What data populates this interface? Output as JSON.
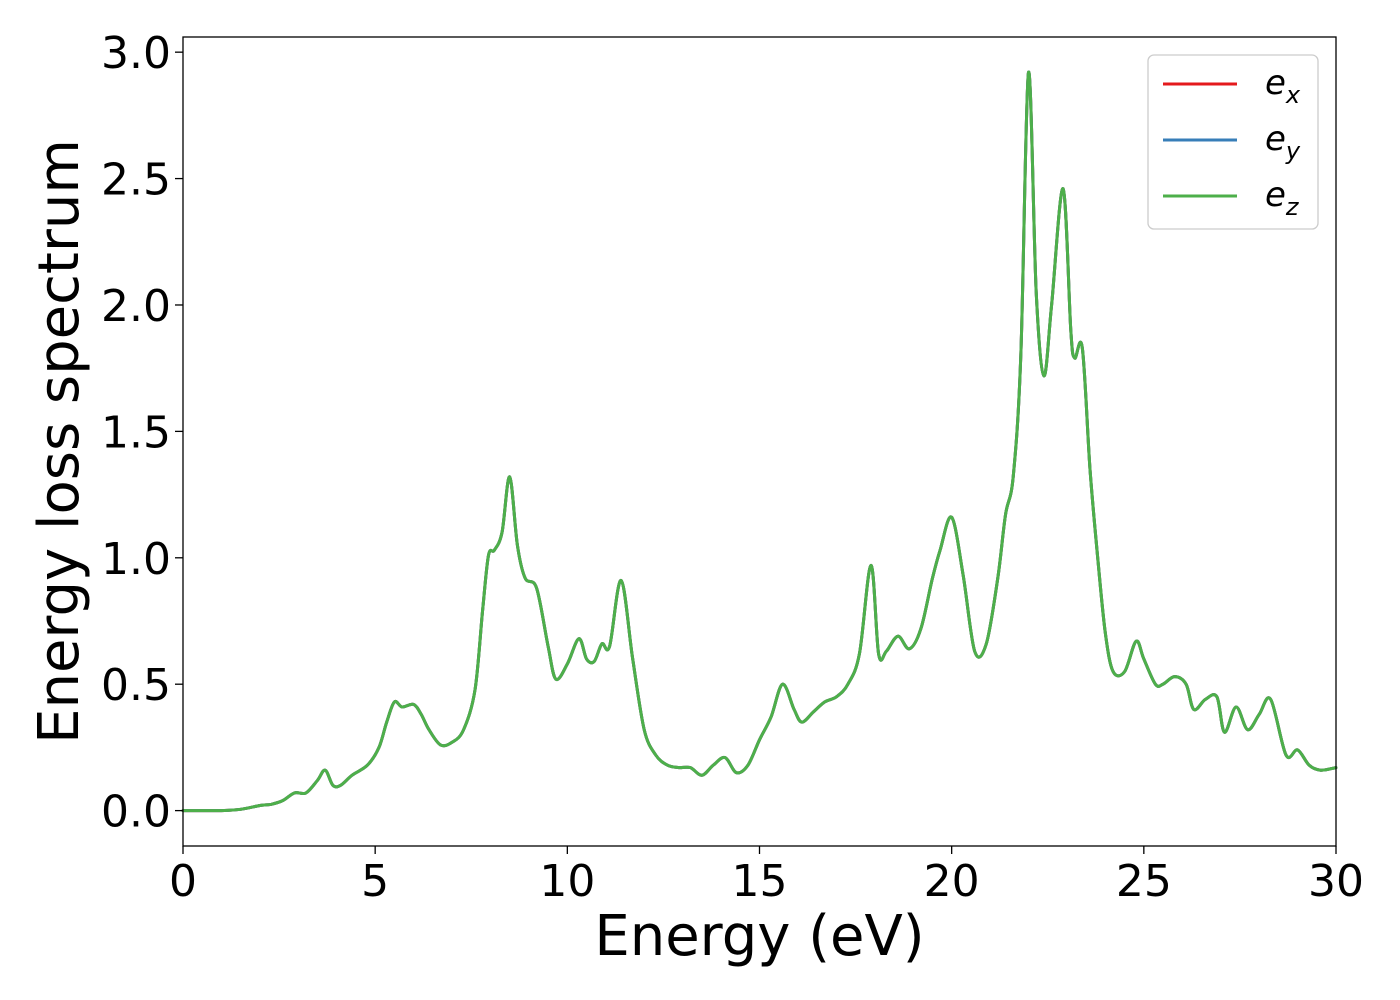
{
  "chart_data": {
    "type": "line",
    "title": "",
    "xlabel": "Energy (eV)",
    "ylabel": "Energy loss spectrum",
    "xlim": [
      0,
      30
    ],
    "ylim": [
      -0.14,
      3.06
    ],
    "xticks": [
      0,
      5,
      10,
      15,
      20,
      25,
      30
    ],
    "xtick_labels": [
      "0",
      "5",
      "10",
      "15",
      "20",
      "25",
      "30"
    ],
    "yticks": [
      0.0,
      0.5,
      1.0,
      1.5,
      2.0,
      2.5,
      3.0
    ],
    "ytick_labels": [
      "0.0",
      "0.5",
      "1.0",
      "1.5",
      "2.0",
      "2.5",
      "3.0"
    ],
    "grid": false,
    "legend_position": "top-right",
    "series": [
      {
        "name": "e",
        "subscript": "x",
        "color": "#e41a1c"
      },
      {
        "name": "e",
        "subscript": "y",
        "color": "#377eb8"
      },
      {
        "name": "e",
        "subscript": "z",
        "color": "#4daf4a"
      }
    ],
    "x": [
      0,
      0.5,
      1.0,
      1.5,
      2.0,
      2.3,
      2.6,
      2.9,
      3.2,
      3.5,
      3.7,
      3.9,
      4.1,
      4.4,
      4.8,
      5.1,
      5.3,
      5.5,
      5.7,
      6.0,
      6.2,
      6.4,
      6.7,
      7.0,
      7.3,
      7.6,
      7.8,
      7.95,
      8.1,
      8.3,
      8.5,
      8.7,
      8.9,
      9.2,
      9.5,
      9.7,
      10.0,
      10.3,
      10.5,
      10.7,
      10.9,
      11.1,
      11.4,
      11.7,
      12.0,
      12.3,
      12.6,
      12.9,
      13.2,
      13.5,
      13.8,
      14.1,
      14.4,
      14.7,
      15.0,
      15.3,
      15.6,
      15.9,
      16.1,
      16.4,
      16.7,
      17.0,
      17.3,
      17.6,
      17.9,
      18.1,
      18.3,
      18.6,
      18.9,
      19.2,
      19.5,
      19.7,
      20.0,
      20.3,
      20.6,
      20.9,
      21.2,
      21.4,
      21.6,
      21.8,
      22.0,
      22.2,
      22.4,
      22.6,
      22.9,
      23.1,
      23.2,
      23.4,
      23.6,
      23.8,
      24.0,
      24.2,
      24.5,
      24.8,
      25.0,
      25.3,
      25.5,
      25.8,
      26.1,
      26.3,
      26.6,
      26.9,
      27.1,
      27.4,
      27.7,
      28.0,
      28.3,
      28.7,
      29.0,
      29.3,
      29.6,
      30.0
    ],
    "y": [
      0.0,
      0.0,
      0.0,
      0.005,
      0.02,
      0.025,
      0.04,
      0.07,
      0.07,
      0.12,
      0.16,
      0.1,
      0.1,
      0.14,
      0.18,
      0.25,
      0.35,
      0.43,
      0.41,
      0.42,
      0.38,
      0.32,
      0.26,
      0.27,
      0.32,
      0.48,
      0.8,
      1.01,
      1.03,
      1.1,
      1.32,
      1.05,
      0.92,
      0.88,
      0.65,
      0.52,
      0.58,
      0.68,
      0.6,
      0.59,
      0.66,
      0.65,
      0.91,
      0.6,
      0.32,
      0.22,
      0.18,
      0.17,
      0.17,
      0.14,
      0.18,
      0.21,
      0.15,
      0.18,
      0.28,
      0.37,
      0.5,
      0.4,
      0.35,
      0.39,
      0.43,
      0.45,
      0.5,
      0.62,
      0.97,
      0.62,
      0.63,
      0.69,
      0.64,
      0.72,
      0.92,
      1.03,
      1.16,
      0.93,
      0.63,
      0.66,
      0.92,
      1.17,
      1.32,
      1.8,
      2.92,
      2.05,
      1.72,
      2.0,
      2.46,
      1.9,
      1.79,
      1.83,
      1.35,
      1.0,
      0.7,
      0.55,
      0.55,
      0.67,
      0.6,
      0.5,
      0.5,
      0.53,
      0.5,
      0.4,
      0.44,
      0.45,
      0.31,
      0.41,
      0.32,
      0.38,
      0.44,
      0.22,
      0.24,
      0.18,
      0.16,
      0.17
    ]
  }
}
